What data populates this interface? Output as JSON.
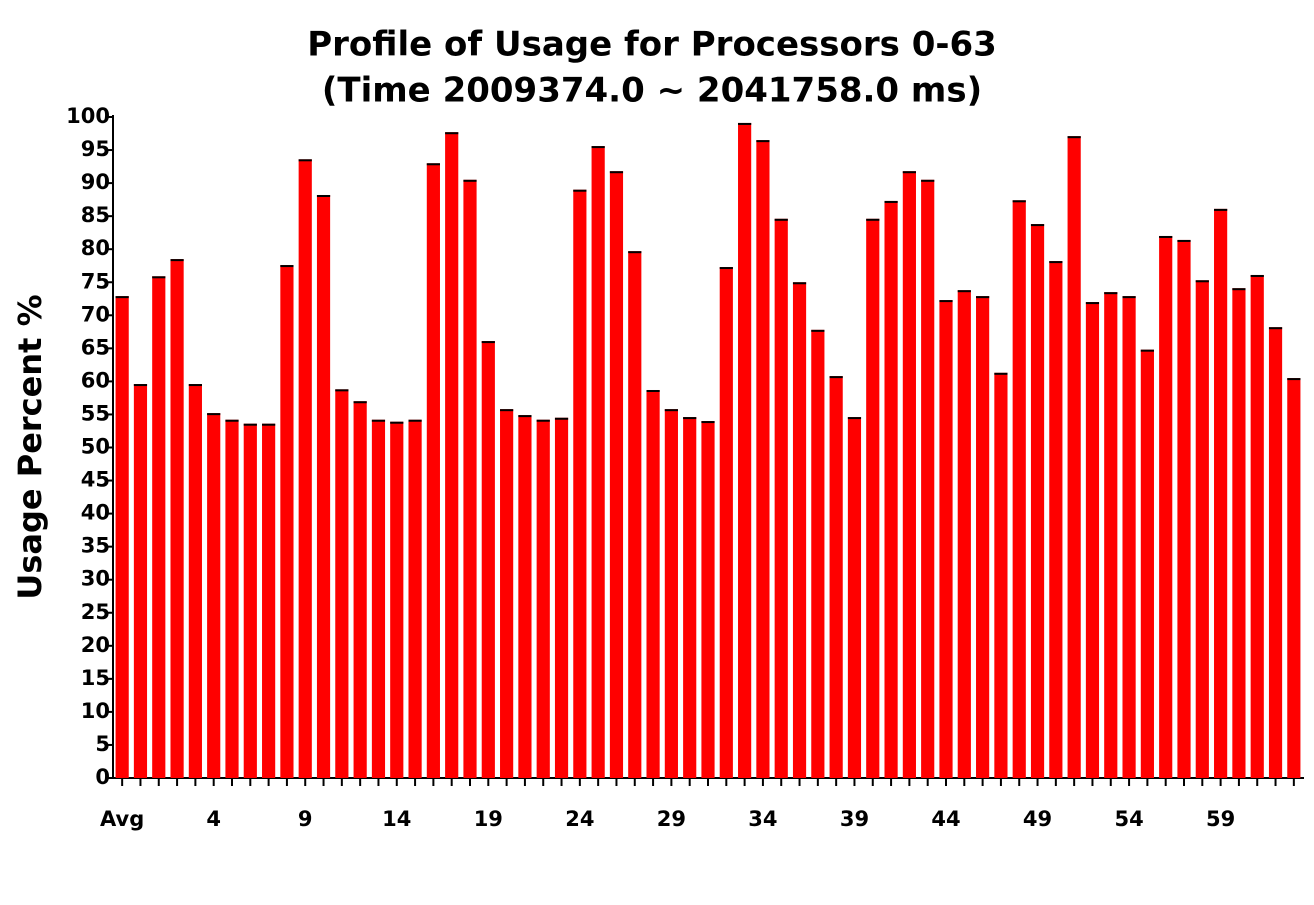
{
  "chart_data": {
    "type": "bar",
    "title": "Profile of Usage for Processors 0-63",
    "subtitle": "(Time 2009374.0 ~ 2041758.0 ms)",
    "y_label": "Usage Percent %",
    "categories": [
      "Avg",
      null,
      null,
      null,
      null,
      "4",
      null,
      null,
      null,
      null,
      "9",
      null,
      null,
      null,
      null,
      "14",
      null,
      null,
      null,
      null,
      "19",
      null,
      null,
      null,
      null,
      "24",
      null,
      null,
      null,
      null,
      "29",
      null,
      null,
      null,
      null,
      "34",
      null,
      null,
      null,
      null,
      "39",
      null,
      null,
      null,
      null,
      "44",
      null,
      null,
      null,
      null,
      "49",
      null,
      null,
      null,
      null,
      "54",
      null,
      null,
      null,
      null,
      "59",
      null,
      null,
      null,
      null
    ],
    "values": [
      72.9,
      59.6,
      75.9,
      78.5,
      59.6,
      55.2,
      54.2,
      53.6,
      53.6,
      77.6,
      93.6,
      88.2,
      58.8,
      57.0,
      54.2,
      53.9,
      54.2,
      93.0,
      97.7,
      90.5,
      66.1,
      55.8,
      54.9,
      54.2,
      54.5,
      89.0,
      95.6,
      91.8,
      79.7,
      58.7,
      55.8,
      54.6,
      54.0,
      77.3,
      99.1,
      96.5,
      84.6,
      75.0,
      67.8,
      60.8,
      54.6,
      84.6,
      87.3,
      91.8,
      90.5,
      72.3,
      73.8,
      72.9,
      61.3,
      87.4,
      83.8,
      78.2,
      97.1,
      72.0,
      73.5,
      72.9,
      64.8,
      82.0,
      81.4,
      75.3,
      86.1,
      74.1,
      76.1,
      68.2,
      60.5
    ],
    "color": "#ff0000",
    "ylim": [
      0,
      100
    ],
    "yticks": [
      0,
      5,
      10,
      15,
      20,
      25,
      30,
      35,
      40,
      45,
      50,
      55,
      60,
      65,
      70,
      75,
      80,
      85,
      90,
      95,
      100
    ],
    "grid": false
  }
}
